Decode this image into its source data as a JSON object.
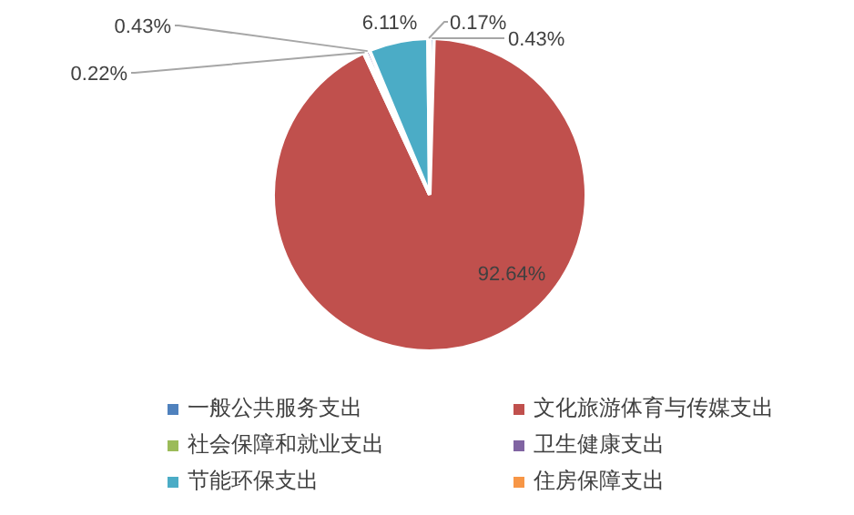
{
  "chart_data": {
    "type": "pie",
    "categories": [
      "一般公共服务支出",
      "文化旅游体育与传媒支出",
      "社会保障和就业支出",
      "卫生健康支出",
      "节能环保支出",
      "住房保障支出"
    ],
    "values": [
      0.43,
      92.64,
      0.22,
      0.43,
      6.11,
      0.17
    ],
    "colors": [
      "#4f81bd",
      "#c0504d",
      "#9bbb59",
      "#8064a2",
      "#4bacc6",
      "#f79646"
    ],
    "value_labels": [
      "0.43%",
      "92.64%",
      "0.22%",
      "0.43%",
      "6.11%",
      "0.17%"
    ],
    "legend": "bottom"
  }
}
